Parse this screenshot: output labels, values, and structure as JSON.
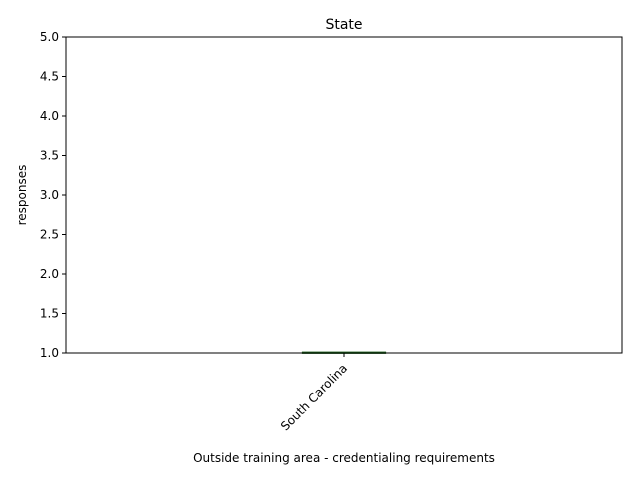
{
  "chart_data": {
    "type": "bar",
    "title": "State",
    "xlabel": "Outside training area - credentialing requirements",
    "ylabel": "responses",
    "categories": [
      "South Carolina"
    ],
    "values": [
      1
    ],
    "ylim": [
      1.0,
      5.0
    ],
    "yticks": [
      "1.0",
      "1.5",
      "2.0",
      "2.5",
      "3.0",
      "3.5",
      "4.0",
      "4.5",
      "5.0"
    ],
    "grid": false,
    "bar_color": "#2ca02c"
  }
}
